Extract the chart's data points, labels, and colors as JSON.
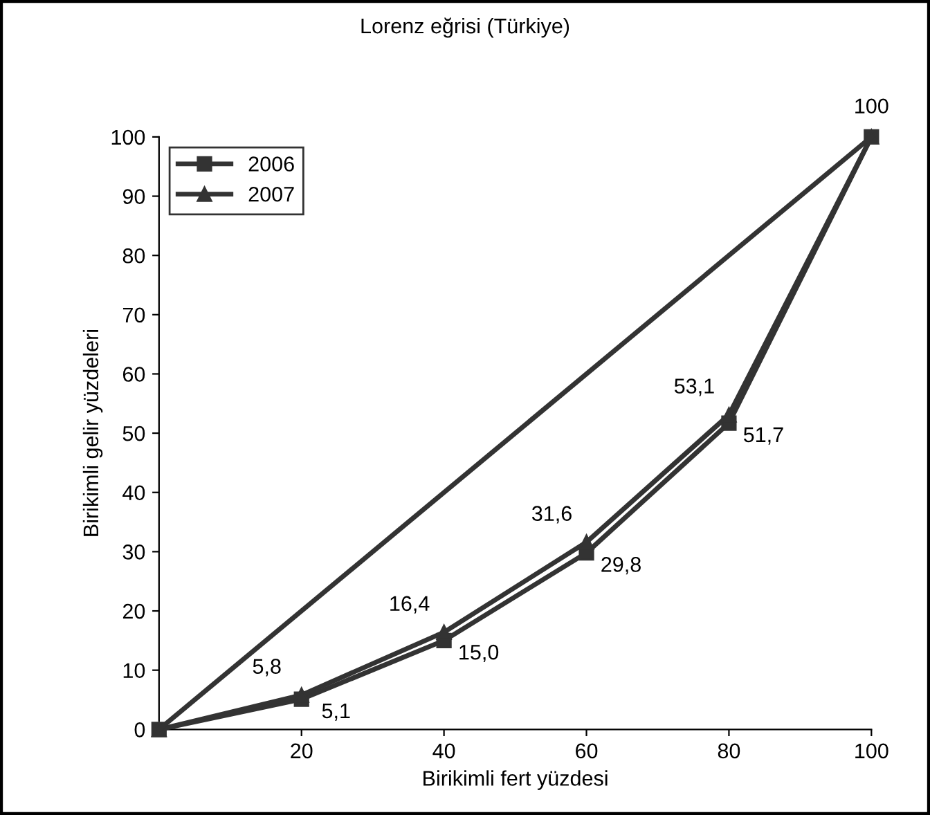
{
  "chart_data": {
    "type": "line",
    "title": "Lorenz eğrisi (Türkiye)",
    "xlabel": "Birikimli fert yüzdesi",
    "ylabel": "Birikimli gelir yüzdeleri",
    "x": [
      0,
      20,
      40,
      60,
      80,
      100
    ],
    "series": [
      {
        "name": "2006",
        "color": "#333333",
        "marker": "square",
        "values": [
          0,
          5.1,
          15.0,
          29.8,
          51.7,
          100
        ],
        "value_labels": [
          null,
          "5,1",
          "15,0",
          "29,8",
          "51,7",
          null
        ]
      },
      {
        "name": "2007",
        "color": "#333333",
        "marker": "triangle",
        "values": [
          0,
          5.8,
          16.4,
          31.6,
          53.1,
          100
        ],
        "value_labels": [
          null,
          "5,8",
          "16,4",
          "31,6",
          "53,1",
          "100"
        ]
      },
      {
        "color": "#333333",
        "marker": "none",
        "x": [
          0,
          100
        ],
        "values": [
          0,
          100
        ]
      }
    ],
    "xlim": [
      0,
      100
    ],
    "ylim": [
      0,
      100
    ],
    "xticks": [
      20,
      40,
      60,
      80,
      100
    ],
    "yticks": [
      0,
      10,
      20,
      30,
      40,
      50,
      60,
      70,
      80,
      90,
      100
    ],
    "grid": false,
    "legend": "top left"
  }
}
